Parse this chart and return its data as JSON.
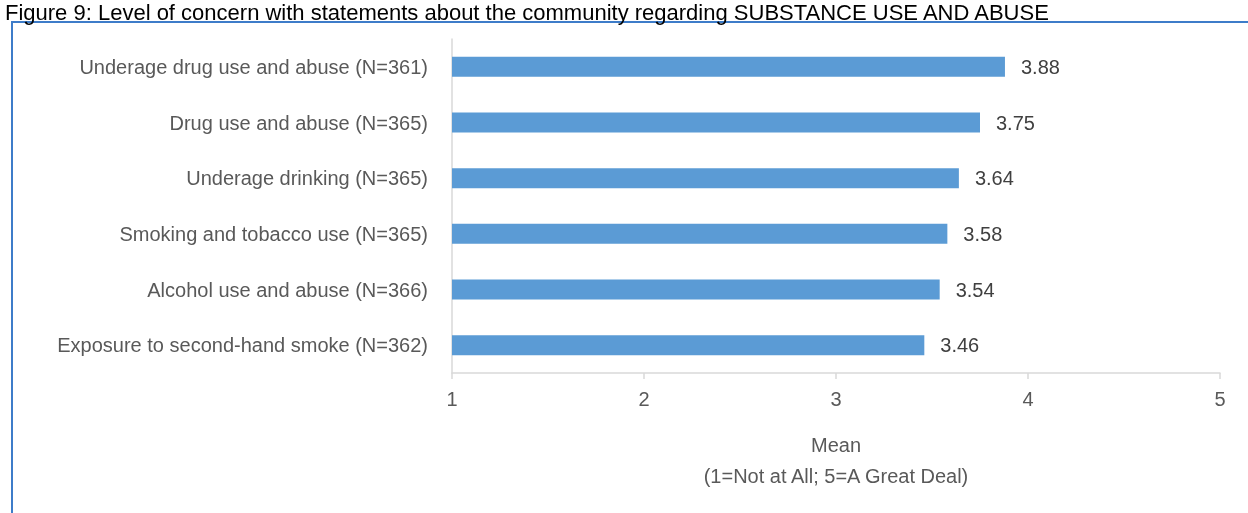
{
  "chart_data": {
    "type": "bar",
    "orientation": "horizontal",
    "title": "Figure 9: Level of concern with statements about the community regarding SUBSTANCE USE AND ABUSE",
    "xlabel": "Mean\n(1=Not at All; 5=A Great Deal)",
    "categories": [
      "Underage drug use and abuse (N=361)",
      "Drug use and abuse (N=365)",
      "Underage drinking (N=365)",
      "Smoking and tobacco use (N=365)",
      "Alcohol use and abuse (N=366)",
      "Exposure to second-hand smoke (N=362)"
    ],
    "values": [
      3.88,
      3.75,
      3.64,
      3.58,
      3.54,
      3.46
    ],
    "color": "#5b9bd5",
    "xlim": [
      1,
      5
    ],
    "xticks": [
      1,
      2,
      3,
      4,
      5
    ],
    "data_labels": true,
    "grid": false
  }
}
